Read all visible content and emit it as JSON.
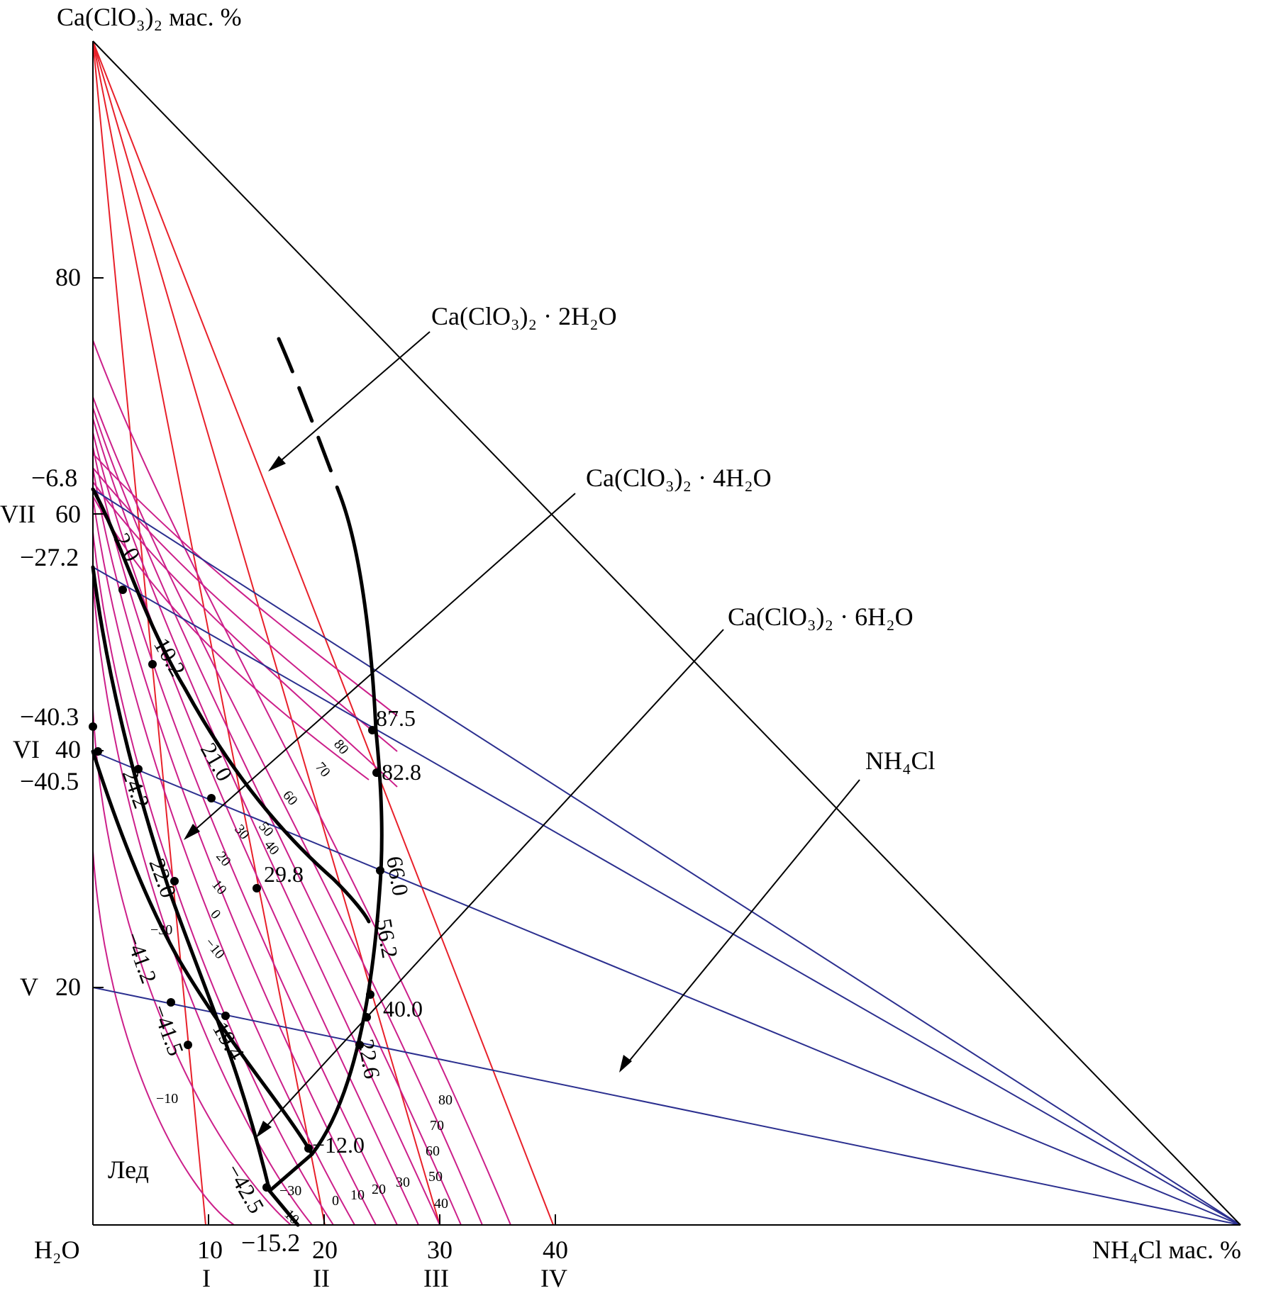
{
  "axes": {
    "y_title": "Ca(ClO₃)₂ мас. %",
    "x_title": "NH₄Cl мас. %",
    "origin": "H₂O",
    "y_ticks": [
      "80",
      "60",
      "40",
      "20"
    ],
    "x_ticks": [
      "10",
      "20",
      "30",
      "40"
    ],
    "x_sections": [
      "I",
      "II",
      "III",
      "IV"
    ],
    "y_sections": [
      "VII",
      "VI",
      "V"
    ],
    "y_side_temps": [
      "−6.8",
      "−27.2",
      "−40.3",
      "−40.5"
    ],
    "x_extra": "−15.2"
  },
  "phases": {
    "dihydrate": "Ca(ClO₃)₂ · 2H₂O",
    "tetrahydrate": "Ca(ClO₃)₂ · 4H₂O",
    "hexahydrate": "Ca(ClO₃)₂ · 6H₂O",
    "ammonium_chloride": "NH₄Cl",
    "ice": "Лед"
  },
  "points": [
    "2.0",
    "10.2",
    "21.0",
    "29.8",
    "24.2",
    "22.0",
    "−41.2",
    "−41.5",
    "−19.4",
    "−42.5",
    "−12.0",
    "22.6",
    "40.0",
    "56.2",
    "66.0",
    "82.8",
    "87.5"
  ],
  "isotherms_upper": [
    "80",
    "70",
    "60",
    "50",
    "40",
    "30",
    "20",
    "10",
    "0",
    "−10",
    "−30"
  ],
  "isotherms_lower": [
    "−10",
    "−30",
    "−10",
    "0",
    "10",
    "20",
    "30",
    "40",
    "50",
    "60",
    "70",
    "80"
  ],
  "colors": {
    "black": "#000000",
    "red": "#e8202a",
    "magenta": "#cc1f8a",
    "blue": "#2b2f8f"
  }
}
